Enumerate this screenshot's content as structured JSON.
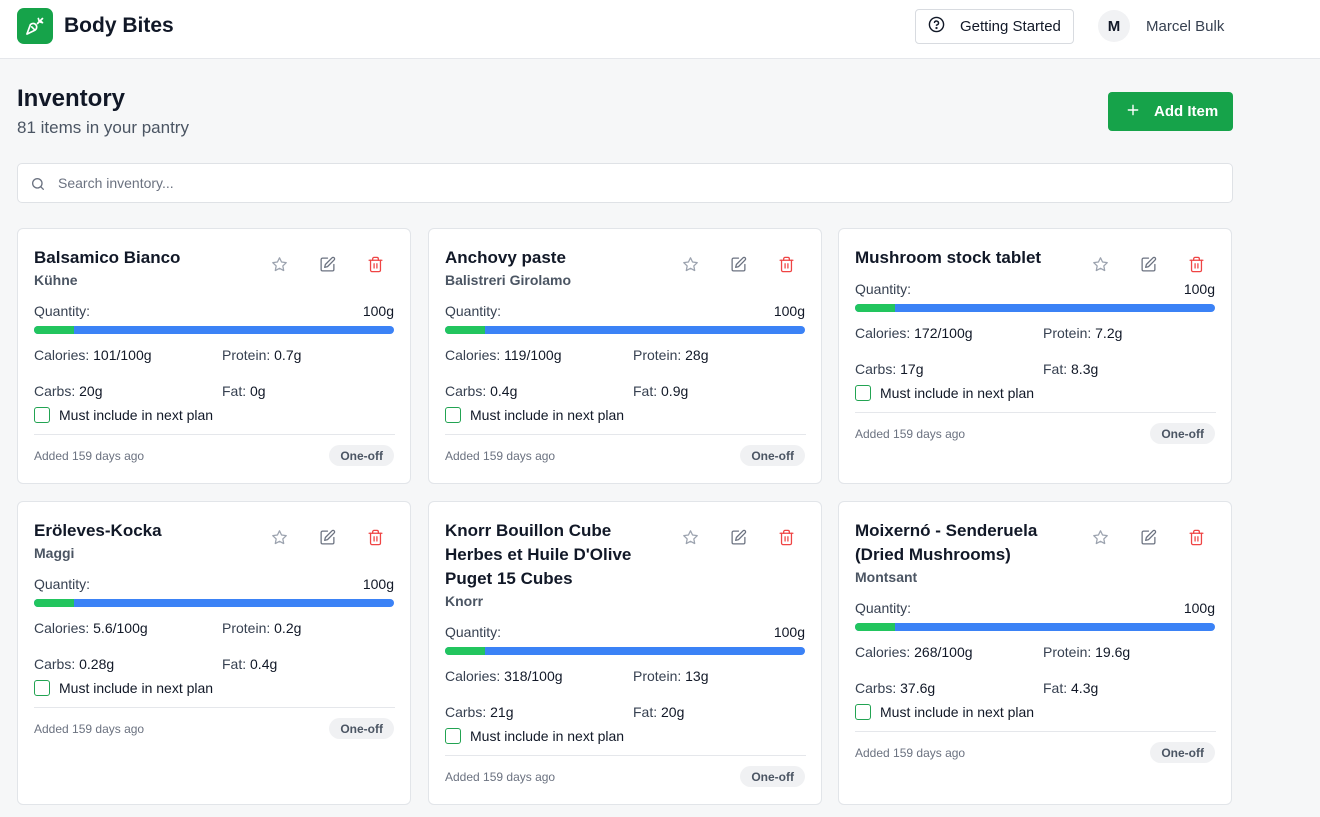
{
  "header": {
    "brand": "Body Bites",
    "getting_started": "Getting Started",
    "avatar_initial": "M",
    "user_name": "Marcel Bulk"
  },
  "page": {
    "title": "Inventory",
    "subtitle": "81 items in your pantry",
    "add_button": "Add Item",
    "search_placeholder": "Search inventory..."
  },
  "labels": {
    "quantity": "Quantity:",
    "calories": "Calories:",
    "protein": "Protein:",
    "carbs": "Carbs:",
    "fat": "Fat:",
    "must_include": "Must include in next plan"
  },
  "colors": {
    "accent": "#16a34a",
    "bar_remaining": "#3b82f6",
    "bar_fill": "#22c55e",
    "delete": "#ef4444"
  },
  "items": [
    {
      "name": "Balsamico Bianco",
      "brand": "Kühne",
      "quantity": "100g",
      "calories": "101/100g",
      "protein": "0.7g",
      "carbs": "20g",
      "fat": "0g",
      "added": "Added 159 days ago",
      "badge": "One-off",
      "must_include": false,
      "qty_fraction": 0.11
    },
    {
      "name": "Anchovy paste",
      "brand": "Balistreri Girolamo",
      "quantity": "100g",
      "calories": "119/100g",
      "protein": "28g",
      "carbs": "0.4g",
      "fat": "0.9g",
      "added": "Added 159 days ago",
      "badge": "One-off",
      "must_include": false,
      "qty_fraction": 0.11
    },
    {
      "name": "Mushroom stock tablet",
      "brand": "",
      "quantity": "100g",
      "calories": "172/100g",
      "protein": "7.2g",
      "carbs": "17g",
      "fat": "8.3g",
      "added": "Added 159 days ago",
      "badge": "One-off",
      "must_include": false,
      "qty_fraction": 0.11
    },
    {
      "name": "Eröleves-Kocka",
      "brand": "Maggi",
      "quantity": "100g",
      "calories": "5.6/100g",
      "protein": "0.2g",
      "carbs": "0.28g",
      "fat": "0.4g",
      "added": "Added 159 days ago",
      "badge": "One-off",
      "must_include": false,
      "qty_fraction": 0.11
    },
    {
      "name": "Knorr Bouillon Cube Herbes et Huile D'Olive Puget 15 Cubes",
      "brand": "Knorr",
      "quantity": "100g",
      "calories": "318/100g",
      "protein": "13g",
      "carbs": "21g",
      "fat": "20g",
      "added": "Added 159 days ago",
      "badge": "One-off",
      "must_include": false,
      "qty_fraction": 0.11
    },
    {
      "name": "Moixernó - Senderuela (Dried Mushrooms)",
      "brand": "Montsant",
      "quantity": "100g",
      "calories": "268/100g",
      "protein": "19.6g",
      "carbs": "37.6g",
      "fat": "4.3g",
      "added": "Added 159 days ago",
      "badge": "One-off",
      "must_include": false,
      "qty_fraction": 0.11
    }
  ]
}
